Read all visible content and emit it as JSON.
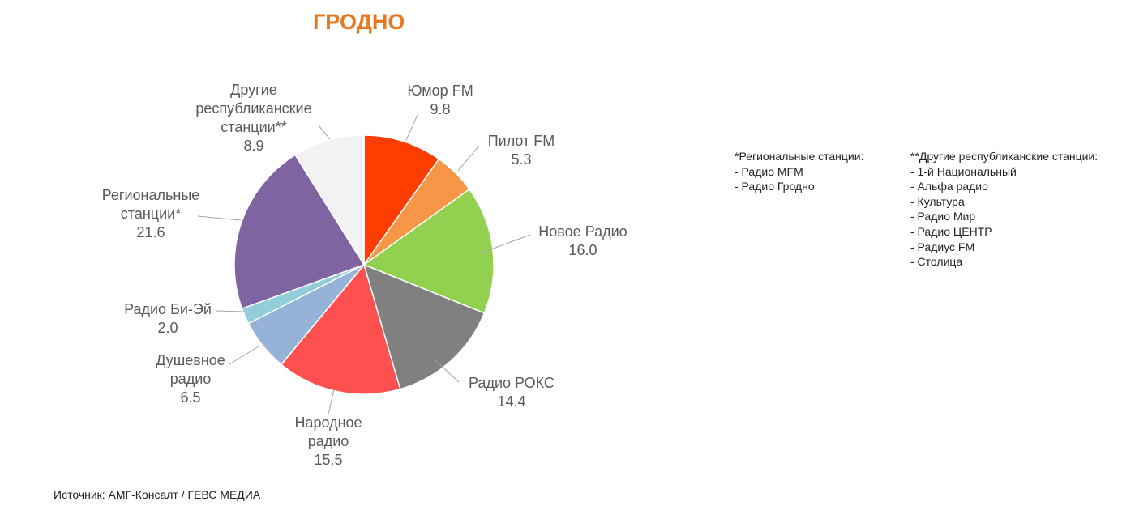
{
  "title": "ГРОДНО",
  "chart_data": {
    "type": "pie",
    "title": "ГРОДНО",
    "slices": [
      {
        "label_lines": [
          "Юмор FM"
        ],
        "value": 9.8,
        "color": "#ff3d00"
      },
      {
        "label_lines": [
          "Пилот FM"
        ],
        "value": 5.3,
        "color": "#f79646"
      },
      {
        "label_lines": [
          "Новое Радио"
        ],
        "value": 16.0,
        "color": "#92d050"
      },
      {
        "label_lines": [
          "Радио РОКС"
        ],
        "value": 14.4,
        "color": "#808080"
      },
      {
        "label_lines": [
          "Народное",
          "радио"
        ],
        "value": 15.5,
        "color": "#ff5050"
      },
      {
        "label_lines": [
          "Душевное",
          "радио"
        ],
        "value": 6.5,
        "color": "#95b3d7"
      },
      {
        "label_lines": [
          "Радио Би-Эй"
        ],
        "value": 2.0,
        "color": "#92cddc"
      },
      {
        "label_lines": [
          "Региональные",
          "станции*"
        ],
        "value": 21.6,
        "color": "#8064a2"
      },
      {
        "label_lines": [
          "Другие",
          "республиканские",
          "станции**"
        ],
        "value": 8.9,
        "color": "#f2f2f2"
      }
    ],
    "value_format": "one decimal"
  },
  "regional_note": {
    "heading": "*Региональные станции:",
    "items": [
      "- Радио MFM",
      "- Радио Гродно"
    ]
  },
  "other_note": {
    "heading": "**Другие республиканские станции:",
    "items": [
      "- 1-й Национальный",
      "- Альфа радио",
      "- Культура",
      "- Радио Мир",
      "- Радио ЦЕНТР",
      "- Радиус FM",
      "- Столица"
    ]
  },
  "source": "Источник: АМГ-Консалт / ГЕВС МЕДИА"
}
